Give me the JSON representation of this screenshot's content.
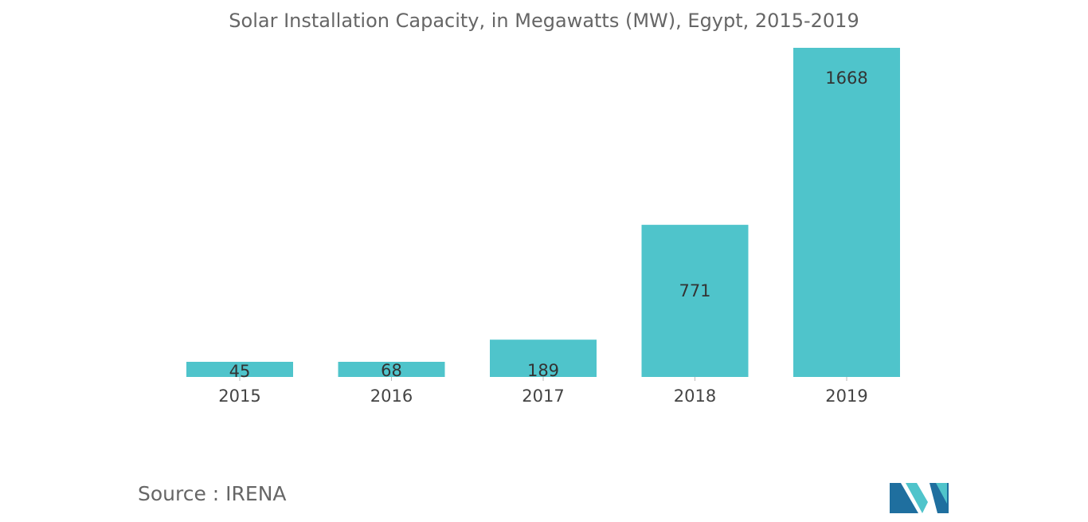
{
  "chart_data": {
    "type": "bar",
    "title": "Solar Installation Capacity, in Megawatts (MW), Egypt, 2015-2019",
    "categories": [
      "2015",
      "2016",
      "2017",
      "2018",
      "2019"
    ],
    "values": [
      45,
      68,
      189,
      771,
      1668
    ],
    "data_labels": [
      "45",
      "68",
      "189",
      "771",
      "1668"
    ],
    "xlabel": "",
    "ylabel": "",
    "ylim": [
      0,
      1668
    ],
    "grid": false,
    "legend": "none",
    "bar_color": "#4fc4cb"
  },
  "source": {
    "text": "Source : IRENA"
  },
  "logo": {
    "icon": "mordor-intelligence-logo-icon",
    "colors": [
      "#1f6f9f",
      "#4fc4cb"
    ]
  }
}
